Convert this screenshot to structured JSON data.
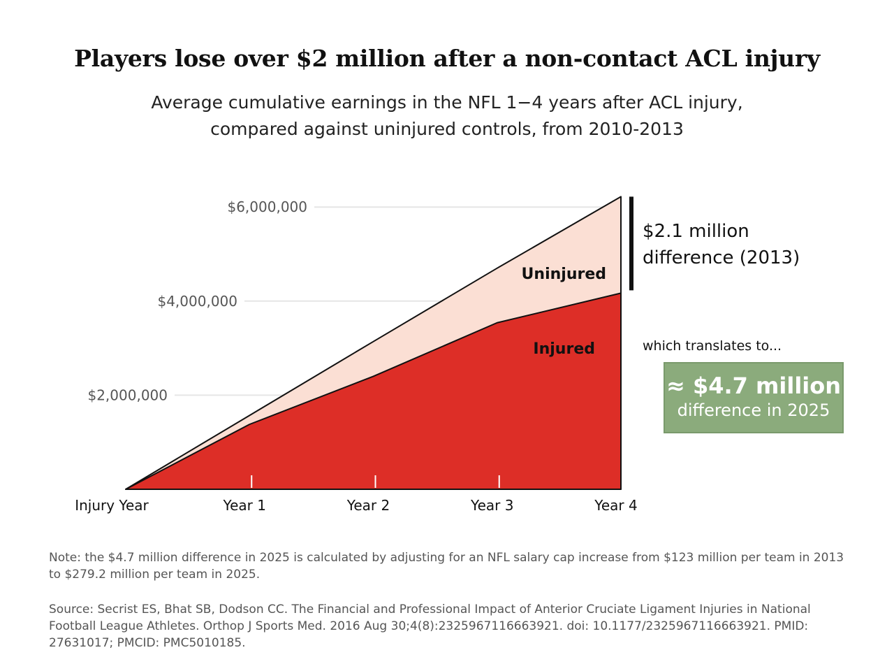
{
  "title": "Players lose over $2 million after a non-contact ACL injury",
  "subtitle_line1": "Average cumulative earnings in the NFL 1−4 years after ACL injury,",
  "subtitle_line2": "compared against uninjured controls, from 2010-2013",
  "annotation": {
    "difference_line1": "$2.1 million",
    "difference_line2": "difference (2013)",
    "translates": "which translates to...",
    "box_value": "≈ $4.7 million",
    "box_caption": "difference in 2025",
    "box_color": "#8bab7c"
  },
  "note": "Note: the $4.7 million difference in 2025 is calculated by adjusting for an NFL salary cap increase from $123 million per team in 2013 to $279.2 million per team in 2025.",
  "source": "Source: Secrist ES, Bhat SB, Dodson CC. The Financial and Professional Impact of Anterior Cruciate Ligament Injuries in National Football League Athletes. Orthop J Sports Med. 2016 Aug 30;4(8):2325967116663921. doi: 10.1177/2325967116663921. PMID: 27631017; PMCID: PMC5010185.",
  "chart_data": {
    "type": "area",
    "categories": [
      "Injury Year",
      "Year 1",
      "Year 2",
      "Year 3",
      "Year 4"
    ],
    "series": [
      {
        "name": "Uninjured",
        "values": [
          0,
          1570000,
          3140000,
          4700000,
          6220000
        ],
        "color": "#fbdfd4"
      },
      {
        "name": "Injured",
        "values": [
          0,
          1380000,
          2400000,
          3540000,
          4170000
        ],
        "color": "#dd2e27"
      }
    ],
    "y_ticks": [
      {
        "value": 2000000,
        "label": "$2,000,000"
      },
      {
        "value": 4000000,
        "label": "$4,000,000"
      },
      {
        "value": 6000000,
        "label": "$6,000,000"
      }
    ],
    "ylim": [
      0,
      6300000
    ],
    "grid": true,
    "xlabel": "",
    "ylabel": ""
  }
}
